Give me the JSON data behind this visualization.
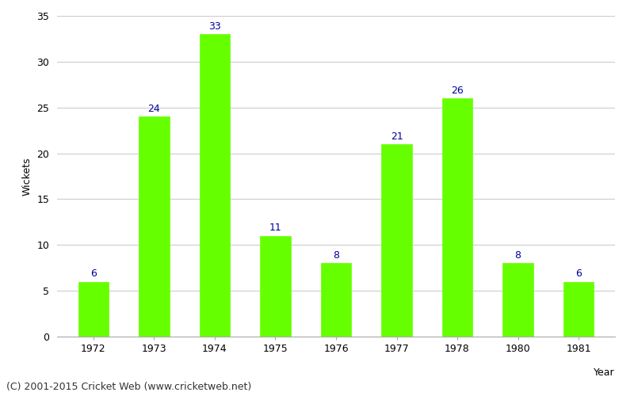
{
  "years": [
    "1972",
    "1973",
    "1974",
    "1975",
    "1976",
    "1977",
    "1978",
    "1980",
    "1981"
  ],
  "wickets": [
    6,
    24,
    33,
    11,
    8,
    21,
    26,
    8,
    6
  ],
  "bar_color": "#66ff00",
  "bar_edge_color": "#66ff00",
  "label_color": "#000099",
  "xlabel": "Year",
  "ylabel": "Wickets",
  "ylim": [
    0,
    35
  ],
  "yticks": [
    0,
    5,
    10,
    15,
    20,
    25,
    30,
    35
  ],
  "grid_color": "#cccccc",
  "background_color": "#ffffff",
  "label_fontsize": 9,
  "axis_label_fontsize": 9,
  "tick_fontsize": 9,
  "footer_text": "(C) 2001-2015 Cricket Web (www.cricketweb.net)",
  "footer_fontsize": 9,
  "bar_width": 0.5
}
